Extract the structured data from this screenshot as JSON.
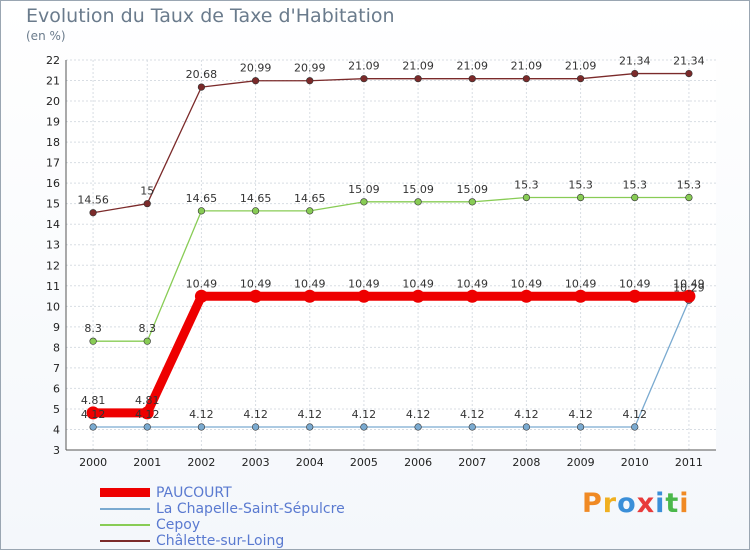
{
  "header": {
    "title": "Evolution du Taux de Taxe d'Habitation",
    "subtitle": "(en %)"
  },
  "logo": {
    "text": "Proxiti",
    "colors": [
      "#f08a24",
      "#f0b020",
      "#3a8fd8",
      "#e83b3b",
      "#3a8fd8",
      "#4bb84b",
      "#f08a24"
    ]
  },
  "chart_data": {
    "type": "line",
    "title": "Evolution du Taux de Taxe d'Habitation",
    "subtitle": "(en %)",
    "x": [
      "2000",
      "2001",
      "2002",
      "2003",
      "2004",
      "2005",
      "2006",
      "2007",
      "2008",
      "2009",
      "2010",
      "2011"
    ],
    "ylim": [
      3,
      22
    ],
    "yticks": [
      "3",
      "4",
      "5",
      "6",
      "7",
      "8",
      "9",
      "10",
      "11",
      "12",
      "13",
      "14",
      "15",
      "16",
      "17",
      "18",
      "19",
      "20",
      "21",
      "22"
    ],
    "grid": true,
    "legend_position": "bottom-left",
    "series": [
      {
        "name": "Châlette-sur-Loing",
        "color": "#7b2a2a",
        "values": [
          14.56,
          15,
          20.68,
          20.99,
          20.99,
          21.09,
          21.09,
          21.09,
          21.09,
          21.09,
          21.34,
          21.34
        ],
        "labels": [
          "14.56",
          "15",
          "20.68",
          "20.99",
          "20.99",
          "21.09",
          "21.09",
          "21.09",
          "21.09",
          "21.09",
          "21.34",
          "21.34"
        ]
      },
      {
        "name": "Cepoy",
        "color": "#88cc55",
        "values": [
          8.3,
          8.3,
          14.65,
          14.65,
          14.65,
          15.09,
          15.09,
          15.09,
          15.3,
          15.3,
          15.3,
          15.3
        ],
        "labels": [
          "8.3",
          "8.3",
          "14.65",
          "14.65",
          "14.65",
          "15.09",
          "15.09",
          "15.09",
          "15.3",
          "15.3",
          "15.3",
          "15.3"
        ]
      },
      {
        "name": "La Chapelle-Saint-Sépulcre",
        "color": "#7aaad0",
        "values": [
          4.12,
          4.12,
          4.12,
          4.12,
          4.12,
          4.12,
          4.12,
          4.12,
          4.12,
          4.12,
          4.12,
          10.29
        ],
        "labels": [
          "4.12",
          "4.12",
          "4.12",
          "4.12",
          "4.12",
          "4.12",
          "4.12",
          "4.12",
          "4.12",
          "4.12",
          "4.12",
          "10.29"
        ]
      },
      {
        "name": "PAUCOURT",
        "color": "#ee0000",
        "values": [
          4.81,
          4.81,
          10.49,
          10.49,
          10.49,
          10.49,
          10.49,
          10.49,
          10.49,
          10.49,
          10.49,
          10.49
        ],
        "labels": [
          "4.81",
          "4.81",
          "10.49",
          "10.49",
          "10.49",
          "10.49",
          "10.49",
          "10.49",
          "10.49",
          "10.49",
          "10.49",
          "10.49"
        ]
      }
    ],
    "legend": [
      {
        "name": "PAUCOURT",
        "color": "#ee0000"
      },
      {
        "name": "La Chapelle-Saint-Sépulcre",
        "color": "#7aaad0"
      },
      {
        "name": "Cepoy",
        "color": "#88cc55"
      },
      {
        "name": "Châlette-sur-Loing",
        "color": "#7b2a2a"
      }
    ]
  }
}
